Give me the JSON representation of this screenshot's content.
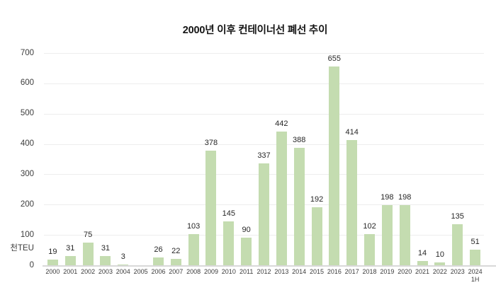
{
  "chart_data": {
    "type": "bar",
    "title": "2000년 이후 컨테이너선 폐선 추이",
    "unit_label": "천TEU",
    "xlabel": "",
    "ylabel": "천TEU",
    "categories": [
      "2000",
      "2001",
      "2002",
      "2003",
      "2004",
      "2005",
      "2006",
      "2007",
      "2008",
      "2009",
      "2010",
      "2011",
      "2012",
      "2013",
      "2014",
      "2015",
      "2016",
      "2017",
      "2018",
      "2019",
      "2020",
      "2021",
      "2022",
      "2023",
      "2024 1H"
    ],
    "values": [
      19,
      31,
      75,
      31,
      3,
      null,
      26,
      22,
      103,
      378,
      145,
      90,
      337,
      442,
      388,
      192,
      655,
      414,
      102,
      198,
      198,
      14,
      10,
      135,
      51
    ],
    "ylim": [
      0,
      700
    ],
    "yticks": [
      0,
      100,
      200,
      300,
      400,
      500,
      600,
      700
    ],
    "grid": true,
    "legend": false,
    "data_labels": true,
    "colors": {
      "bar_fill": "#c4dcb0",
      "gridline": "#ededed",
      "axis_line": "#d8d8d8",
      "title_text": "#141414",
      "tick_text": "#3c3c3c",
      "data_label_text": "#262626"
    }
  }
}
